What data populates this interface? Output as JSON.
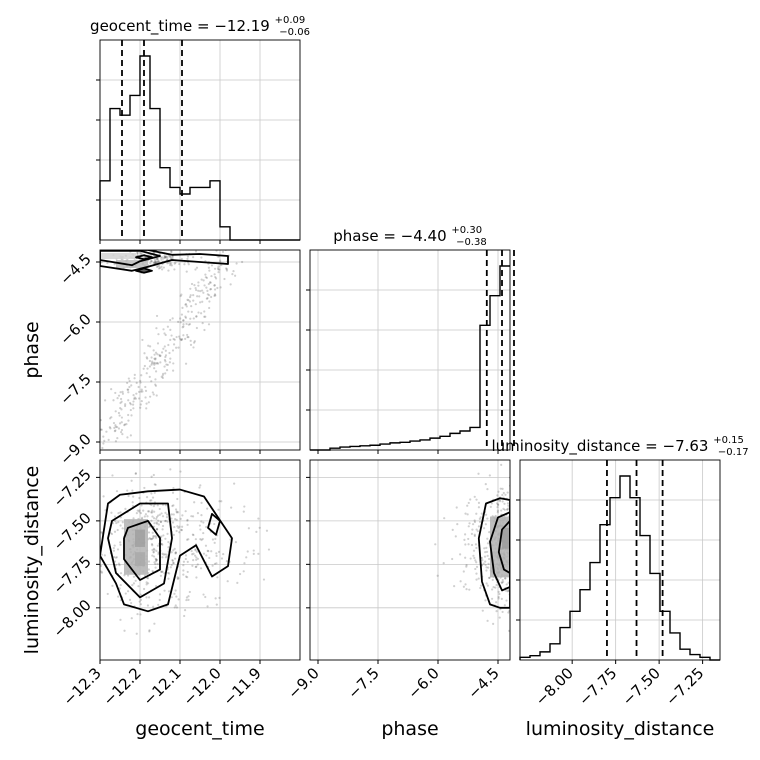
{
  "chart_data": {
    "type": "corner",
    "parameters": [
      "geocent_time",
      "phase",
      "luminosity_distance"
    ],
    "axis_labels": [
      "geocent_time",
      "phase",
      "luminosity_distance"
    ],
    "titles": [
      {
        "name": "geocent_time",
        "median": "−12.19",
        "plus": "+0.09",
        "minus": "−0.06"
      },
      {
        "name": "phase",
        "median": "−4.40",
        "plus": "+0.30",
        "minus": "−0.38"
      },
      {
        "name": "luminosity_distance",
        "median": "−7.63",
        "plus": "+0.15",
        "minus": "−0.17"
      }
    ],
    "ranges": {
      "geocent_time": [
        -12.3,
        -11.8
      ],
      "phase": [
        -9.2,
        -4.2
      ],
      "luminosity_distance": [
        -8.3,
        -7.15
      ]
    },
    "ticks": {
      "geocent_time": {
        "values": [
          -12.3,
          -12.2,
          -12.1,
          -12.0,
          -11.9
        ],
        "labels": [
          "−12.3",
          "−12.2",
          "−12.1",
          "−12.0",
          "−11.9"
        ]
      },
      "phase": {
        "values": [
          -9.0,
          -7.5,
          -6.0,
          -4.5
        ],
        "labels": [
          "−9.0",
          "−7.5",
          "−6.0",
          "−4.5"
        ]
      },
      "luminosity_distance": {
        "values": [
          -8.0,
          -7.75,
          -7.5,
          -7.25
        ],
        "labels": [
          "−8.00",
          "−7.75",
          "−7.50",
          "−7.25"
        ]
      }
    },
    "quantiles": {
      "geocent_time": [
        -12.245,
        -12.19,
        -12.095
      ],
      "phase": [
        -4.78,
        -4.4,
        -4.1
      ],
      "luminosity_distance": [
        -7.8,
        -7.63,
        -7.48
      ]
    },
    "histograms": {
      "geocent_time": {
        "edges": [
          -12.3,
          -12.275,
          -12.25,
          -12.225,
          -12.2,
          -12.175,
          -12.15,
          -12.125,
          -12.1,
          -12.075,
          -12.05,
          -12.025,
          -12.0,
          -11.975,
          -11.95,
          -11.925,
          -11.9,
          -11.875,
          -11.85,
          -11.825,
          -11.8
        ],
        "counts": [
          9,
          20,
          19,
          22,
          28,
          20,
          11,
          8,
          7,
          8,
          8,
          9,
          2,
          0,
          0,
          0,
          0,
          0,
          0,
          0
        ]
      },
      "phase": {
        "edges": [
          -9.2,
          -8.95,
          -8.7,
          -8.45,
          -8.2,
          -7.95,
          -7.7,
          -7.45,
          -7.2,
          -6.95,
          -6.7,
          -6.45,
          -6.2,
          -5.95,
          -5.7,
          -5.45,
          -5.2,
          -4.95,
          -4.7,
          -4.45,
          -4.2
        ],
        "counts": [
          0,
          0,
          0.3,
          0.5,
          0.6,
          0.7,
          0.8,
          1,
          1.2,
          1.3,
          1.5,
          1.7,
          2,
          2.3,
          2.8,
          3.2,
          3.8,
          21,
          26,
          31
        ]
      },
      "luminosity_distance": {
        "edges": [
          -8.3,
          -8.2425,
          -8.185,
          -8.1275,
          -8.07,
          -8.0125,
          -7.955,
          -7.8975,
          -7.84,
          -7.7825,
          -7.725,
          -7.6675,
          -7.61,
          -7.5525,
          -7.495,
          -7.4375,
          -7.38,
          -7.3225,
          -7.265,
          -7.2075,
          -7.15
        ],
        "counts": [
          0.5,
          0.8,
          1.5,
          3,
          6,
          9,
          13,
          18,
          25,
          30,
          34,
          30,
          23,
          16,
          9,
          5,
          2,
          1,
          0.5,
          0
        ]
      }
    },
    "contours": {
      "phase_vs_geocent_time": [
        [
          [
            -12.3,
            -4.6
          ],
          [
            -12.22,
            -4.72
          ],
          [
            -12.18,
            -4.62
          ],
          [
            -12.12,
            -4.45
          ],
          [
            -12.05,
            -4.5
          ],
          [
            -11.98,
            -4.55
          ],
          [
            -11.98,
            -4.35
          ],
          [
            -12.05,
            -4.3
          ],
          [
            -12.12,
            -4.32
          ],
          [
            -12.18,
            -4.2
          ],
          [
            -12.3,
            -4.2
          ]
        ],
        [
          [
            -12.3,
            -4.45
          ],
          [
            -12.22,
            -4.58
          ],
          [
            -12.2,
            -4.48
          ],
          [
            -12.15,
            -4.35
          ],
          [
            -12.2,
            -4.22
          ],
          [
            -12.3,
            -4.22
          ]
        ],
        [
          [
            -12.21,
            -4.38
          ],
          [
            -12.19,
            -4.33
          ],
          [
            -12.17,
            -4.38
          ],
          [
            -12.19,
            -4.43
          ]
        ],
        [
          [
            -12.21,
            -4.72
          ],
          [
            -12.19,
            -4.66
          ],
          [
            -12.17,
            -4.72
          ],
          [
            -12.19,
            -4.77
          ]
        ]
      ],
      "luminosity_distance_vs_geocent_time": [
        [
          [
            -12.28,
            -7.4
          ],
          [
            -12.25,
            -7.35
          ],
          [
            -12.18,
            -7.33
          ],
          [
            -12.1,
            -7.32
          ],
          [
            -12.04,
            -7.36
          ],
          [
            -11.97,
            -7.6
          ],
          [
            -11.98,
            -7.76
          ],
          [
            -12.02,
            -7.82
          ],
          [
            -12.06,
            -7.64
          ],
          [
            -12.1,
            -7.7
          ],
          [
            -12.13,
            -7.98
          ],
          [
            -12.18,
            -8.02
          ],
          [
            -12.24,
            -7.98
          ],
          [
            -12.26,
            -7.86
          ],
          [
            -12.3,
            -7.7
          ]
        ],
        [
          [
            -12.27,
            -7.5
          ],
          [
            -12.2,
            -7.4
          ],
          [
            -12.13,
            -7.4
          ],
          [
            -12.12,
            -7.6
          ],
          [
            -12.14,
            -7.86
          ],
          [
            -12.2,
            -7.94
          ],
          [
            -12.26,
            -7.8
          ],
          [
            -12.28,
            -7.6
          ]
        ],
        [
          [
            -12.23,
            -7.54
          ],
          [
            -12.18,
            -7.5
          ],
          [
            -12.15,
            -7.6
          ],
          [
            -12.15,
            -7.78
          ],
          [
            -12.2,
            -7.84
          ],
          [
            -12.24,
            -7.72
          ],
          [
            -12.24,
            -7.6
          ]
        ],
        [
          [
            -12.02,
            -7.46
          ],
          [
            -12.0,
            -7.5
          ],
          [
            -12.01,
            -7.58
          ],
          [
            -12.03,
            -7.54
          ]
        ]
      ],
      "luminosity_distance_vs_phase": [
        [
          [
            -4.2,
            -7.38
          ],
          [
            -4.45,
            -7.37
          ],
          [
            -4.8,
            -7.4
          ],
          [
            -4.98,
            -7.6
          ],
          [
            -4.9,
            -7.85
          ],
          [
            -4.7,
            -7.98
          ],
          [
            -4.45,
            -8.0
          ],
          [
            -4.2,
            -8.0
          ]
        ],
        [
          [
            -4.2,
            -7.45
          ],
          [
            -4.5,
            -7.48
          ],
          [
            -4.7,
            -7.62
          ],
          [
            -4.6,
            -7.8
          ],
          [
            -4.4,
            -7.9
          ],
          [
            -4.2,
            -7.88
          ]
        ],
        [
          [
            -4.2,
            -7.5
          ],
          [
            -4.4,
            -7.55
          ],
          [
            -4.48,
            -7.68
          ],
          [
            -4.35,
            -7.78
          ],
          [
            -4.2,
            -7.8
          ]
        ]
      ]
    },
    "density_cells": {
      "phase_vs_geocent_time": [
        {
          "x": -12.19,
          "y": -4.72,
          "w": 0.025,
          "h": 0.08,
          "level": 0.85
        },
        {
          "x": -12.22,
          "y": -4.55,
          "w": 0.08,
          "h": 0.2,
          "level": 0.3
        },
        {
          "x": -12.26,
          "y": -4.35,
          "w": 0.1,
          "h": 0.15,
          "level": 0.2
        }
      ],
      "luminosity_distance_vs_geocent_time": [
        {
          "x": -12.2,
          "y": -7.6,
          "w": 0.025,
          "h": 0.1,
          "level": 0.9
        },
        {
          "x": -12.2,
          "y": -7.72,
          "w": 0.025,
          "h": 0.08,
          "level": 0.6
        },
        {
          "x": -12.21,
          "y": -7.65,
          "w": 0.06,
          "h": 0.32,
          "level": 0.35
        }
      ],
      "luminosity_distance_vs_phase": [
        {
          "x": -4.3,
          "y": -7.6,
          "w": 0.2,
          "h": 0.12,
          "level": 0.95
        },
        {
          "x": -4.45,
          "y": -7.65,
          "w": 0.5,
          "h": 0.35,
          "level": 0.35
        }
      ]
    },
    "grid": true
  }
}
